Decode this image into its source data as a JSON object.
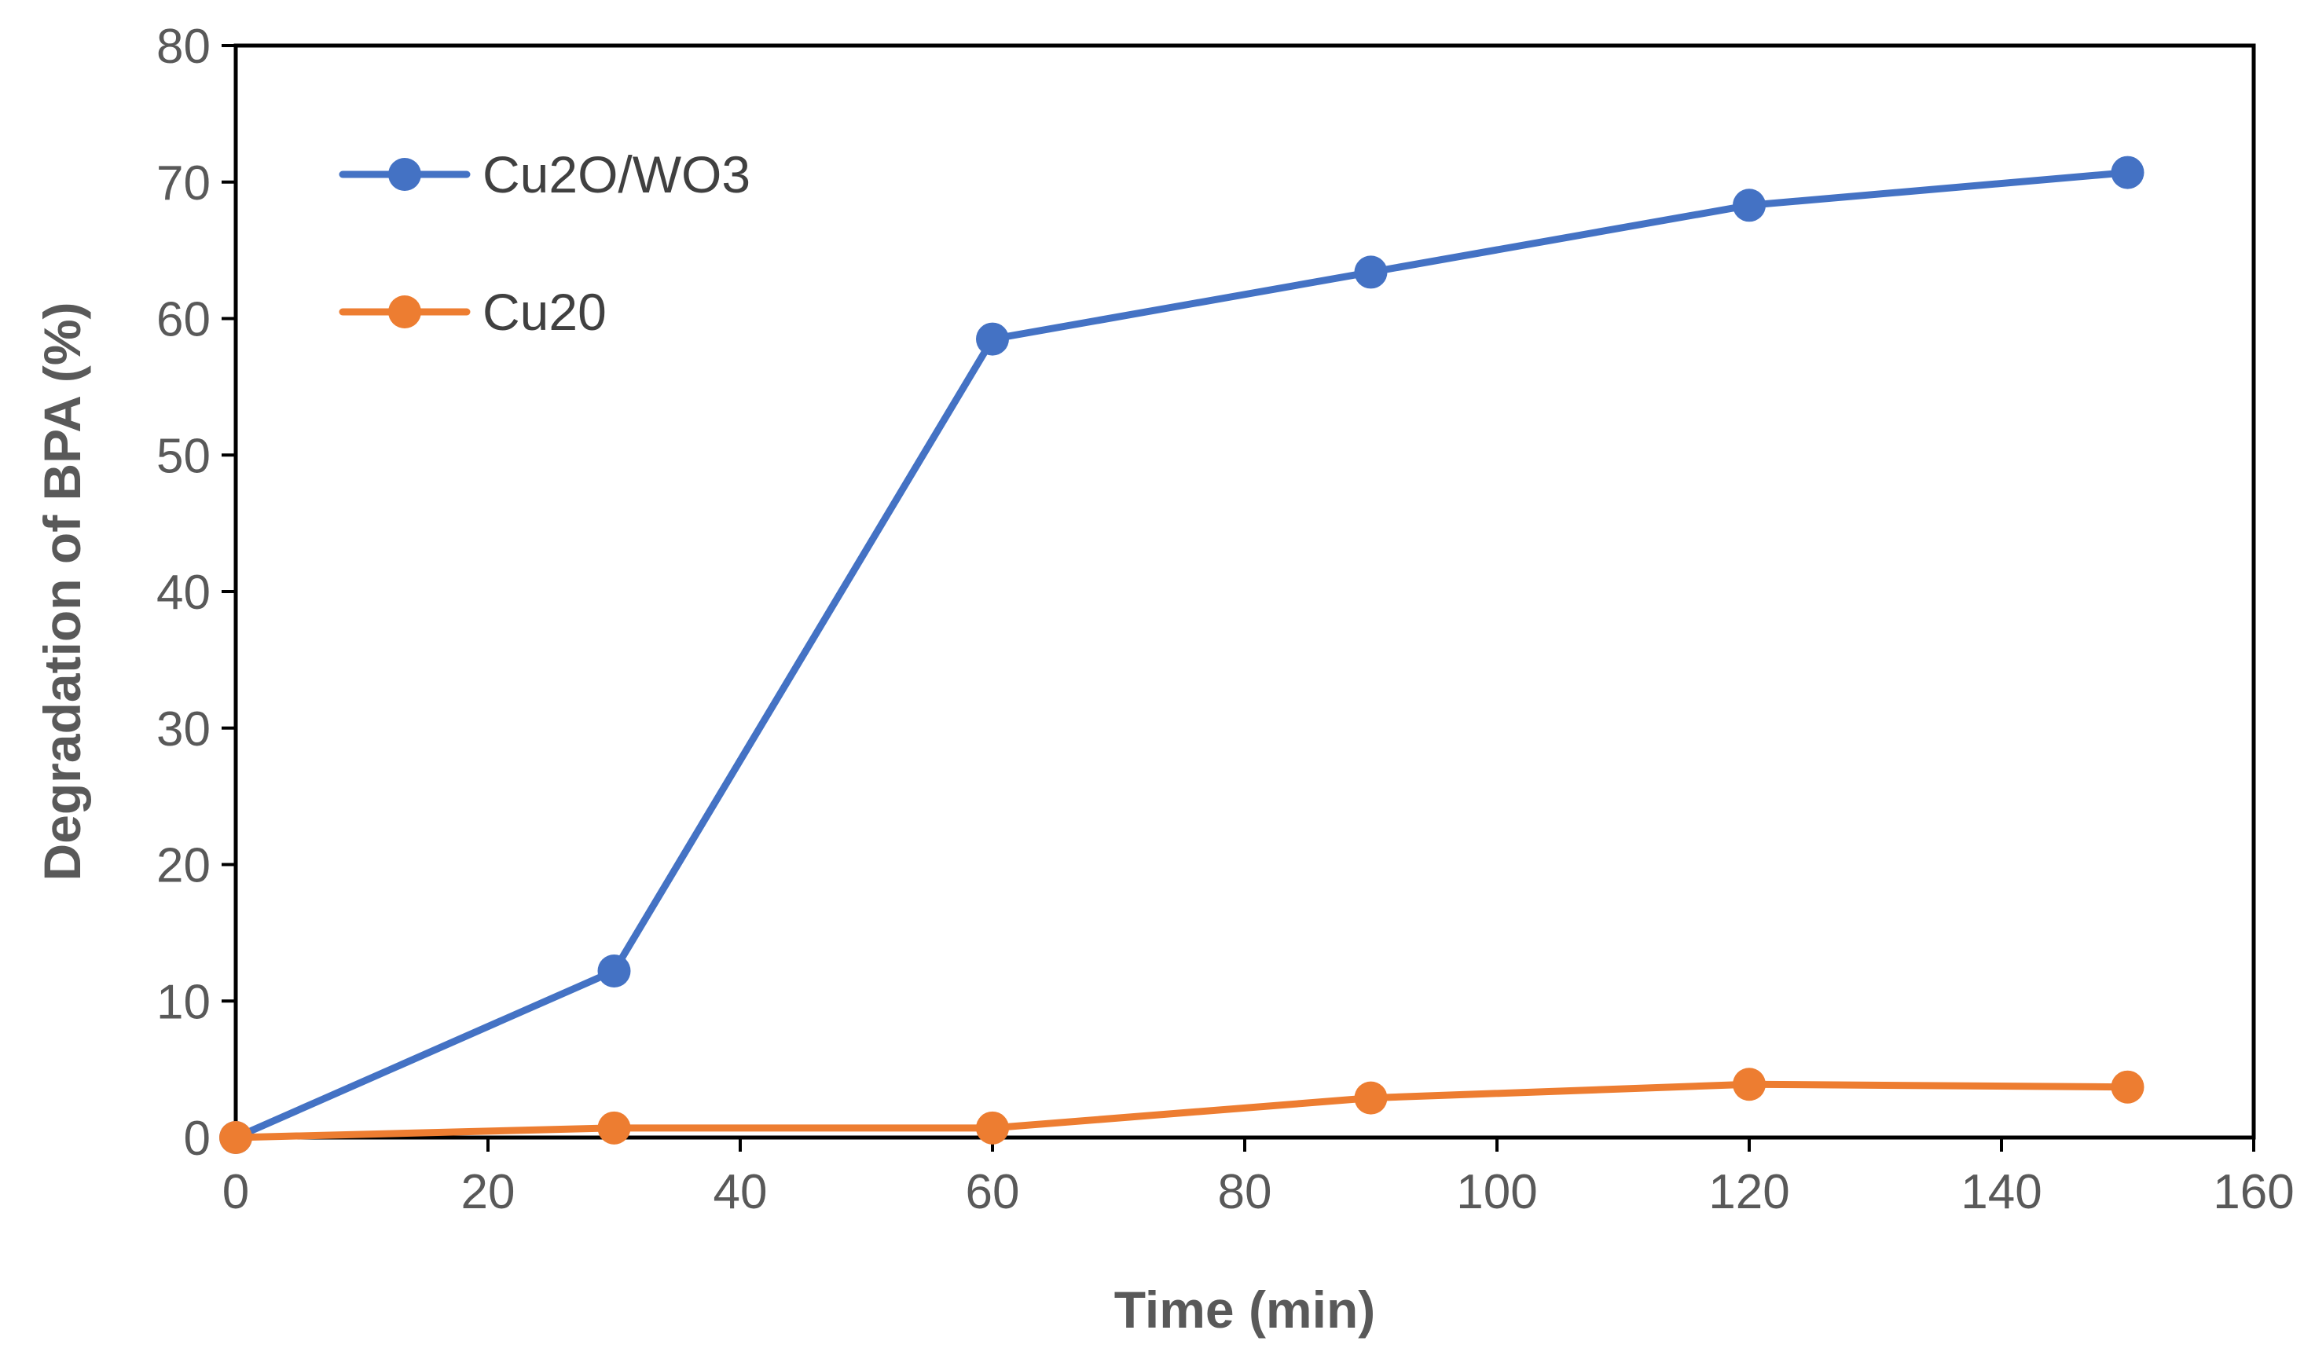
{
  "chart_data": {
    "type": "line",
    "title": "",
    "xlabel": "Time (min)",
    "ylabel": "Degradation of BPA (%)",
    "xlim": [
      0,
      160
    ],
    "ylim": [
      0,
      80
    ],
    "xticks": [
      0,
      20,
      40,
      60,
      80,
      100,
      120,
      140,
      160
    ],
    "yticks": [
      0,
      10,
      20,
      30,
      40,
      50,
      60,
      70,
      80
    ],
    "grid": false,
    "legend_position": "top-left",
    "x": [
      0,
      30,
      60,
      90,
      120,
      150
    ],
    "series": [
      {
        "name": "Cu2O/WO3",
        "color": "#4472C4",
        "values": [
          0,
          12.2,
          58.5,
          63.4,
          68.3,
          70.7
        ]
      },
      {
        "name": "Cu20",
        "color": "#ED7D31",
        "values": [
          0,
          0.7,
          0.7,
          2.9,
          3.9,
          3.7
        ]
      }
    ]
  }
}
